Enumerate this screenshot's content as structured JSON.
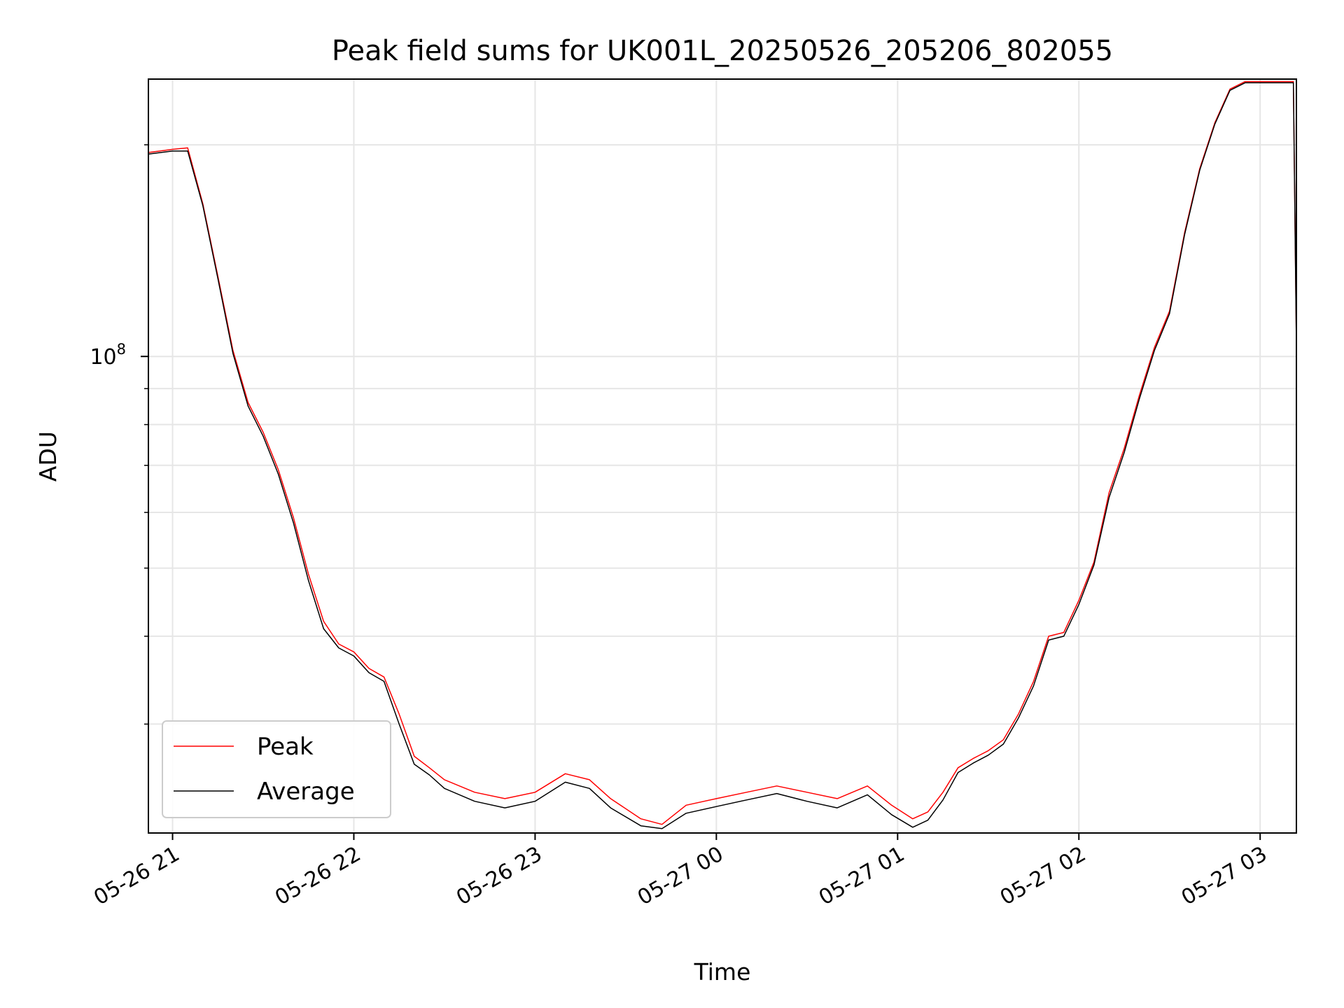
{
  "chart_data": {
    "type": "line",
    "title": "Peak field sums for UK001L_20250526_205206_802055",
    "xlabel": "Time",
    "ylabel": "ADU",
    "yscale": "log",
    "grid": true,
    "legend_position": "lower-left",
    "x_start": "2025-05-26 20:52",
    "x_end": "2025-05-27 03:12",
    "ylim": [
      21000000,
      248000000
    ],
    "x_ticks": [
      {
        "label": "05-26 21",
        "time": "2025-05-26 21:00"
      },
      {
        "label": "05-26 22",
        "time": "2025-05-26 22:00"
      },
      {
        "label": "05-26 23",
        "time": "2025-05-26 23:00"
      },
      {
        "label": "05-27 00",
        "time": "2025-05-27 00:00"
      },
      {
        "label": "05-27 01",
        "time": "2025-05-27 01:00"
      },
      {
        "label": "05-27 02",
        "time": "2025-05-27 02:00"
      },
      {
        "label": "05-27 03",
        "time": "2025-05-27 03:00"
      }
    ],
    "y_major_tick": {
      "label": "10",
      "exponent": "8",
      "value": 100000000
    },
    "y_minor_ticks": [
      30000000,
      40000000,
      50000000,
      60000000,
      70000000,
      80000000,
      90000000,
      200000000
    ],
    "series": [
      {
        "name": "Peak",
        "color": "#ff0000",
        "x": [
          "2025-05-26 20:52",
          "2025-05-26 21:00",
          "2025-05-26 21:05",
          "2025-05-26 21:10",
          "2025-05-26 21:15",
          "2025-05-26 21:20",
          "2025-05-26 21:25",
          "2025-05-26 21:30",
          "2025-05-26 21:35",
          "2025-05-26 21:40",
          "2025-05-26 21:45",
          "2025-05-26 21:50",
          "2025-05-26 21:55",
          "2025-05-26 22:00",
          "2025-05-26 22:05",
          "2025-05-26 22:10",
          "2025-05-26 22:15",
          "2025-05-26 22:20",
          "2025-05-26 22:25",
          "2025-05-26 22:30",
          "2025-05-26 22:40",
          "2025-05-26 22:50",
          "2025-05-26 23:00",
          "2025-05-26 23:10",
          "2025-05-26 23:18",
          "2025-05-26 23:25",
          "2025-05-26 23:35",
          "2025-05-26 23:42",
          "2025-05-26 23:50",
          "2025-05-27 00:00",
          "2025-05-27 00:10",
          "2025-05-27 00:20",
          "2025-05-27 00:30",
          "2025-05-27 00:40",
          "2025-05-27 00:50",
          "2025-05-27 00:58",
          "2025-05-27 01:05",
          "2025-05-27 01:10",
          "2025-05-27 01:15",
          "2025-05-27 01:20",
          "2025-05-27 01:25",
          "2025-05-27 01:30",
          "2025-05-27 01:35",
          "2025-05-27 01:40",
          "2025-05-27 01:45",
          "2025-05-27 01:50",
          "2025-05-27 01:55",
          "2025-05-27 02:00",
          "2025-05-27 02:05",
          "2025-05-27 02:10",
          "2025-05-27 02:15",
          "2025-05-27 02:20",
          "2025-05-27 02:25",
          "2025-05-27 02:30",
          "2025-05-27 02:35",
          "2025-05-27 02:40",
          "2025-05-27 02:45",
          "2025-05-27 02:50",
          "2025-05-27 02:55",
          "2025-05-27 03:00",
          "2025-05-27 03:05",
          "2025-05-27 03:11",
          "2025-05-27 03:12"
        ],
        "y": [
          195000000,
          197000000,
          198000000,
          165000000,
          130000000,
          102000000,
          86000000,
          78000000,
          69000000,
          59000000,
          49000000,
          42000000,
          39000000,
          38000000,
          36000000,
          35000000,
          31000000,
          27000000,
          26000000,
          25000000,
          24000000,
          23500000,
          24000000,
          25500000,
          25000000,
          23500000,
          22000000,
          21600000,
          23000000,
          23500000,
          24000000,
          24500000,
          24000000,
          23500000,
          24500000,
          23000000,
          22000000,
          22500000,
          24000000,
          26000000,
          26800000,
          27500000,
          28500000,
          31000000,
          34500000,
          40000000,
          40500000,
          45000000,
          51000000,
          64000000,
          74000000,
          88000000,
          103000000,
          116000000,
          150000000,
          185000000,
          215000000,
          240000000,
          246000000,
          246000000,
          246000000,
          246000000,
          104000000
        ]
      },
      {
        "name": "Average",
        "color": "#000000",
        "x": [
          "2025-05-26 20:52",
          "2025-05-26 21:00",
          "2025-05-26 21:05",
          "2025-05-26 21:10",
          "2025-05-26 21:15",
          "2025-05-26 21:20",
          "2025-05-26 21:25",
          "2025-05-26 21:30",
          "2025-05-26 21:35",
          "2025-05-26 21:40",
          "2025-05-26 21:45",
          "2025-05-26 21:50",
          "2025-05-26 21:55",
          "2025-05-26 22:00",
          "2025-05-26 22:05",
          "2025-05-26 22:10",
          "2025-05-26 22:15",
          "2025-05-26 22:20",
          "2025-05-26 22:25",
          "2025-05-26 22:30",
          "2025-05-26 22:40",
          "2025-05-26 22:50",
          "2025-05-26 23:00",
          "2025-05-26 23:10",
          "2025-05-26 23:18",
          "2025-05-26 23:25",
          "2025-05-26 23:35",
          "2025-05-26 23:42",
          "2025-05-26 23:50",
          "2025-05-27 00:00",
          "2025-05-27 00:10",
          "2025-05-27 00:20",
          "2025-05-27 00:30",
          "2025-05-27 00:40",
          "2025-05-27 00:50",
          "2025-05-27 00:58",
          "2025-05-27 01:05",
          "2025-05-27 01:10",
          "2025-05-27 01:15",
          "2025-05-27 01:20",
          "2025-05-27 01:25",
          "2025-05-27 01:30",
          "2025-05-27 01:35",
          "2025-05-27 01:40",
          "2025-05-27 01:45",
          "2025-05-27 01:50",
          "2025-05-27 01:55",
          "2025-05-27 02:00",
          "2025-05-27 02:05",
          "2025-05-27 02:10",
          "2025-05-27 02:15",
          "2025-05-27 02:20",
          "2025-05-27 02:25",
          "2025-05-27 02:30",
          "2025-05-27 02:35",
          "2025-05-27 02:40",
          "2025-05-27 02:45",
          "2025-05-27 02:50",
          "2025-05-27 02:55",
          "2025-05-27 03:00",
          "2025-05-27 03:05",
          "2025-05-27 03:11",
          "2025-05-27 03:12"
        ],
        "y": [
          194000000,
          196000000,
          196000000,
          164000000,
          129000000,
          101000000,
          85000000,
          77000000,
          68000000,
          58000000,
          48000000,
          41000000,
          38500000,
          37500000,
          35500000,
          34500000,
          30000000,
          26300000,
          25400000,
          24300000,
          23300000,
          22800000,
          23300000,
          24800000,
          24300000,
          22800000,
          21500000,
          21300000,
          22400000,
          22900000,
          23400000,
          23900000,
          23300000,
          22800000,
          23800000,
          22300000,
          21400000,
          21900000,
          23400000,
          25600000,
          26400000,
          27100000,
          28100000,
          30600000,
          34000000,
          39500000,
          40000000,
          44400000,
          50500000,
          63000000,
          73000000,
          87000000,
          102000000,
          115000000,
          149000000,
          184000000,
          214000000,
          239000000,
          245000000,
          245000000,
          245000000,
          245000000,
          103000000
        ]
      }
    ]
  }
}
